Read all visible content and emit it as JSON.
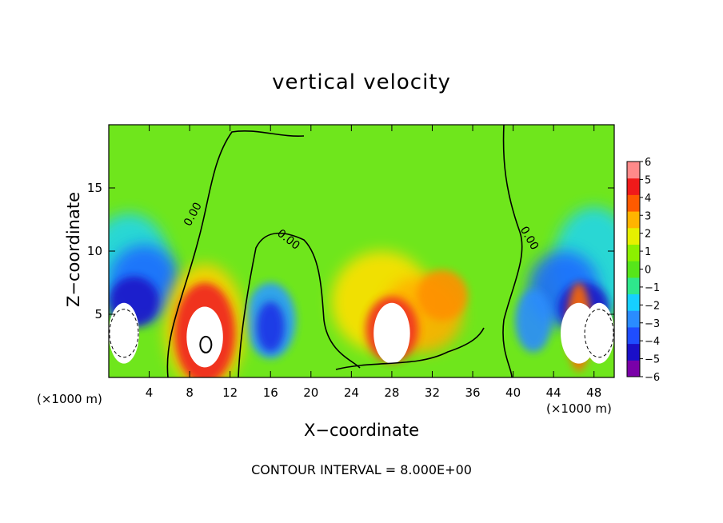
{
  "chart_data": {
    "type": "heatmap",
    "title": "vertical velocity",
    "xlabel": "X−coordinate",
    "ylabel": "Z−coordinate",
    "x_unit": "(×1000 m)",
    "y_unit": "(×1000 m)",
    "xlim": [
      0,
      50
    ],
    "ylim": [
      0,
      20
    ],
    "x_ticks": [
      4,
      8,
      12,
      16,
      20,
      24,
      28,
      32,
      36,
      40,
      44,
      48
    ],
    "y_ticks": [
      5,
      10,
      15
    ],
    "colorbar": {
      "min": -6,
      "max": 6,
      "ticks": [
        "6",
        "5",
        "4",
        "3",
        "2",
        "1",
        "0",
        "−1",
        "−2",
        "−3",
        "−4",
        "−5",
        "−6"
      ],
      "colors": [
        "#7a00a8",
        "#1a0fc8",
        "#1f4dff",
        "#2a8cff",
        "#16d0ff",
        "#2ee88c",
        "#56e61a",
        "#8cf000",
        "#e6f000",
        "#ffb400",
        "#ff5a00",
        "#f01a1a",
        "#ff8a8a"
      ]
    },
    "features": [
      {
        "type": "updraft",
        "x": 9.5,
        "z": 3.2,
        "peak": 8
      },
      {
        "type": "updraft",
        "x": 28.0,
        "z": 3.5,
        "peak": 7
      },
      {
        "type": "updraft",
        "x": 46.5,
        "z": 3.5,
        "peak": 8
      },
      {
        "type": "downdraft",
        "x": 1.5,
        "z": 3.5,
        "peak": -8
      },
      {
        "type": "downdraft",
        "x": 16.0,
        "z": 3.5,
        "peak": -4
      },
      {
        "type": "downdraft",
        "x": 48.5,
        "z": 3.5,
        "peak": -8
      },
      {
        "type": "downdraft",
        "x": 42.0,
        "z": 4.5,
        "peak": -4
      }
    ],
    "contour_labels": [
      "0.00",
      "0.00",
      "0.00"
    ],
    "contour_interval": "CONTOUR INTERVAL = 8.000E+00"
  }
}
